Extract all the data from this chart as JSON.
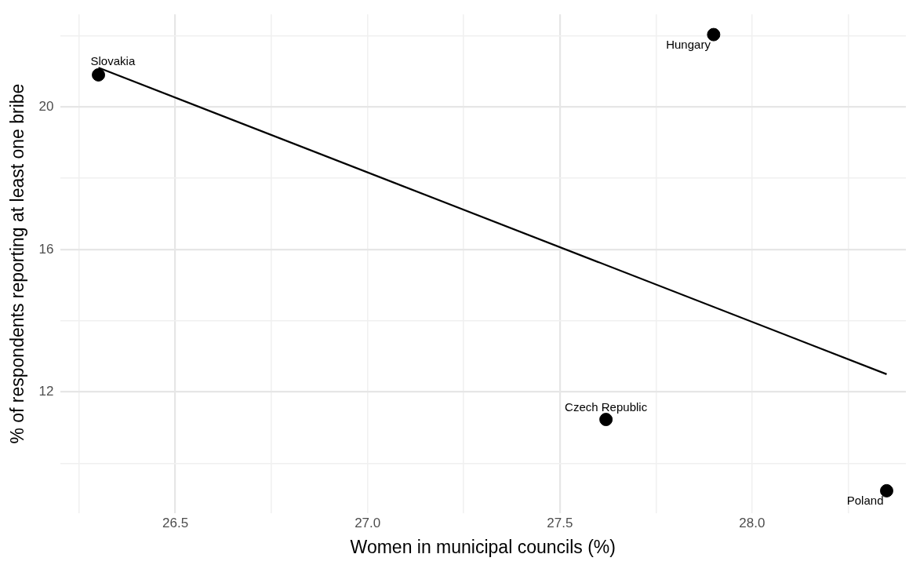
{
  "chart_data": {
    "type": "scatter",
    "xlabel": "Women in municipal councils (%)",
    "ylabel": "% of respondents reporting at least one bribe",
    "xlim": [
      26.2,
      28.4
    ],
    "ylim": [
      8.6,
      22.6
    ],
    "xticks": [
      {
        "value": 26.25,
        "label": null
      },
      26.5,
      {
        "value": 26.75,
        "label": null
      },
      {
        "value": 27,
        "label": "27.0"
      },
      {
        "value": 27.25,
        "label": null
      },
      27.5,
      {
        "value": 27.75,
        "label": null
      },
      {
        "value": 28,
        "label": "28.0"
      },
      {
        "value": 28.25,
        "label": null
      }
    ],
    "yticks": [
      {
        "value": 10,
        "label": null
      },
      12,
      {
        "value": 14,
        "label": null
      },
      16,
      {
        "value": 18,
        "label": null
      },
      20,
      {
        "value": 22,
        "label": null
      }
    ],
    "grid": true,
    "legend": false,
    "marker": "circle",
    "series": [
      {
        "type": "scatter",
        "color": "#000000",
        "x": [
          26.3,
          27.9,
          27.62,
          28.35
        ],
        "values": [
          20.9,
          22.03,
          11.23,
          9.23
        ]
      },
      {
        "type": "line",
        "color": "#000000",
        "x": [
          26.3,
          28.35
        ],
        "values": [
          21.1,
          12.5
        ],
        "marker": "none",
        "line_style": "solid"
      }
    ],
    "annotations": [
      {
        "text": "Slovakia",
        "x": 26.3,
        "y": 20.9
      },
      {
        "text": "Hungary",
        "x": 27.9,
        "y": 22.03
      },
      {
        "text": "Czech Republic",
        "x": 27.62,
        "y": 11.23
      },
      {
        "text": "Poland",
        "x": 28.35,
        "y": 9.23
      }
    ]
  }
}
